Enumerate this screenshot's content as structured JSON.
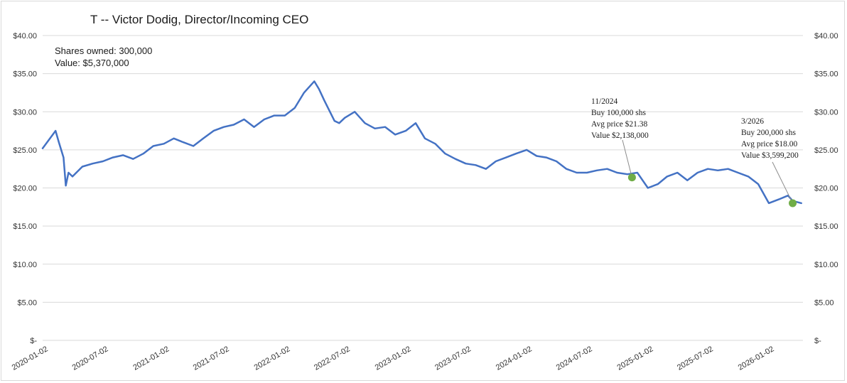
{
  "chart_data": {
    "type": "line",
    "title": "T -- Victor Dodig, Director/Incoming CEO",
    "ylim": [
      0,
      40
    ],
    "y_ticks": [
      {
        "value": 0,
        "label": "$-"
      },
      {
        "value": 5,
        "label": "$5.00"
      },
      {
        "value": 10,
        "label": "$10.00"
      },
      {
        "value": 15,
        "label": "$15.00"
      },
      {
        "value": 20,
        "label": "$20.00"
      },
      {
        "value": 25,
        "label": "$25.00"
      },
      {
        "value": 30,
        "label": "$30.00"
      },
      {
        "value": 35,
        "label": "$35.00"
      },
      {
        "value": 40,
        "label": "$40.00"
      }
    ],
    "x_ticks": [
      "2020-01-02",
      "2020-07-02",
      "2021-01-02",
      "2021-07-02",
      "2022-01-02",
      "2022-07-02",
      "2023-01-02",
      "2023-07-02",
      "2024-01-02",
      "2024-07-02",
      "2025-01-02",
      "2025-07-02",
      "2026-01-02"
    ],
    "xlim": [
      "2020-01-02",
      "2026-04-15"
    ],
    "grid": true,
    "line_color": "#4472c4",
    "series": [
      {
        "x": [
          "2020-01-02",
          "2020-02-10",
          "2020-02-20",
          "2020-03-05",
          "2020-03-12",
          "2020-03-20",
          "2020-04-01",
          "2020-05-01",
          "2020-06-01",
          "2020-07-02",
          "2020-08-01",
          "2020-09-01",
          "2020-10-01",
          "2020-11-01",
          "2020-12-01",
          "2021-01-02",
          "2021-02-01",
          "2021-03-01",
          "2021-04-01",
          "2021-05-01",
          "2021-06-01",
          "2021-07-02",
          "2021-08-01",
          "2021-09-01",
          "2021-10-01",
          "2021-11-01",
          "2021-12-01",
          "2022-01-02",
          "2022-02-01",
          "2022-03-01",
          "2022-04-01",
          "2022-04-15",
          "2022-05-01",
          "2022-06-01",
          "2022-06-15",
          "2022-07-02",
          "2022-08-01",
          "2022-09-01",
          "2022-10-01",
          "2022-11-01",
          "2022-12-01",
          "2023-01-02",
          "2023-02-01",
          "2023-03-01",
          "2023-04-01",
          "2023-05-01",
          "2023-06-01",
          "2023-07-02",
          "2023-08-01",
          "2023-09-01",
          "2023-10-01",
          "2023-11-01",
          "2023-12-01",
          "2024-01-02",
          "2024-02-01",
          "2024-03-01",
          "2024-04-01",
          "2024-05-01",
          "2024-06-01",
          "2024-07-02",
          "2024-08-01",
          "2024-09-01",
          "2024-10-01",
          "2024-11-01",
          "2024-12-01",
          "2025-01-02",
          "2025-02-01",
          "2025-03-01",
          "2025-04-01",
          "2025-05-01",
          "2025-06-01",
          "2025-07-02",
          "2025-08-01",
          "2025-09-01",
          "2025-10-01",
          "2025-11-01",
          "2025-12-01",
          "2026-01-02",
          "2026-02-01",
          "2026-03-01",
          "2026-03-15",
          "2026-04-10"
        ],
        "values": [
          25.2,
          27.5,
          26.0,
          24.0,
          20.3,
          22.0,
          21.5,
          22.8,
          23.2,
          23.5,
          24.0,
          24.3,
          23.8,
          24.5,
          25.5,
          25.8,
          26.5,
          26.0,
          25.5,
          26.5,
          27.5,
          28.0,
          28.3,
          29.0,
          28.0,
          29.0,
          29.5,
          29.5,
          30.5,
          32.5,
          34.0,
          33.0,
          31.5,
          28.8,
          28.5,
          29.2,
          30.0,
          28.5,
          27.8,
          28.0,
          27.0,
          27.5,
          28.5,
          26.5,
          25.8,
          24.5,
          23.8,
          23.2,
          23.0,
          22.5,
          23.5,
          24.0,
          24.5,
          25.0,
          24.2,
          24.0,
          23.5,
          22.5,
          22.0,
          22.0,
          22.3,
          22.5,
          22.0,
          21.8,
          22.0,
          20.0,
          20.5,
          21.5,
          22.0,
          21.0,
          22.0,
          22.5,
          22.3,
          22.5,
          22.0,
          21.5,
          20.5,
          18.0,
          18.5,
          19.0,
          18.3,
          18.0
        ]
      }
    ],
    "markers": [
      {
        "x": "2024-11-15",
        "y": 21.38,
        "color": "#70ad47"
      },
      {
        "x": "2026-03-15",
        "y": 18.0,
        "color": "#70ad47"
      }
    ]
  },
  "info": {
    "shares": "Shares owned: 300,000",
    "value": "Value: $5,370,000"
  },
  "annotations": [
    {
      "lines": [
        "11/2024",
        "Buy 100,000 shs",
        "Avg price $21.38",
        "Value $2,138,000"
      ]
    },
    {
      "lines": [
        "3/2026",
        "Buy 200,000 shs",
        "Avg price $18.00",
        "Value $3,599,200"
      ]
    }
  ]
}
